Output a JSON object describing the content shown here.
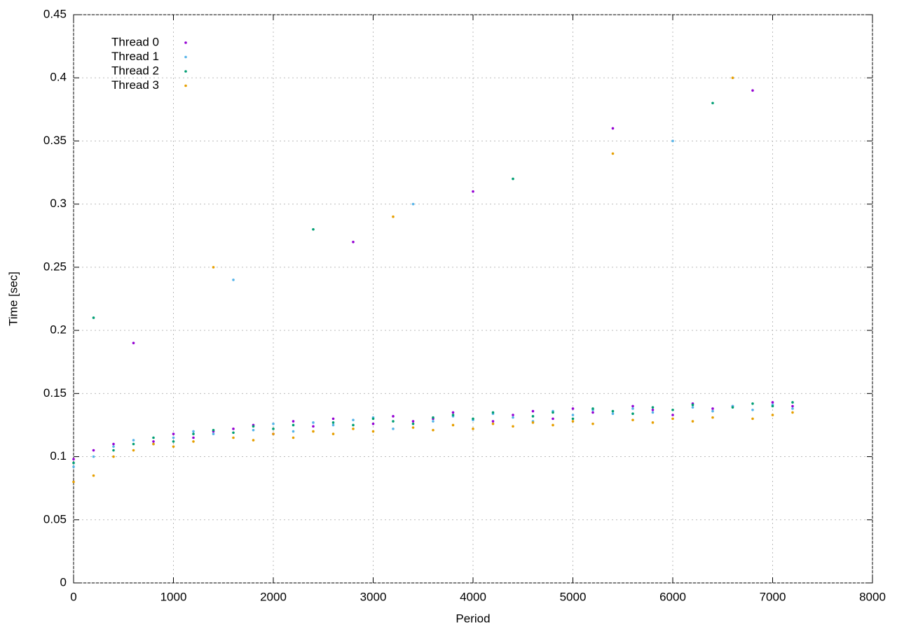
{
  "chart_data": {
    "type": "scatter",
    "x_label": "Period",
    "y_label": "Time [sec]",
    "xlim": [
      0,
      8000
    ],
    "ylim": [
      0,
      0.45
    ],
    "xticks": [
      0,
      1000,
      2000,
      3000,
      4000,
      5000,
      6000,
      7000,
      8000
    ],
    "yticks": [
      0,
      0.05,
      0.1,
      0.15,
      0.2,
      0.25,
      0.3,
      0.35,
      0.4,
      0.45
    ],
    "grid": true,
    "legend": "upper-left",
    "x": [
      0,
      200,
      400,
      600,
      800,
      1000,
      1200,
      1400,
      1600,
      1800,
      2000,
      2200,
      2400,
      2600,
      2800,
      3000,
      3200,
      3400,
      3600,
      3800,
      4000,
      4200,
      4400,
      4600,
      4800,
      5000,
      5200,
      5400,
      5600,
      5800,
      6000,
      6200,
      6400,
      6600,
      6800,
      7000,
      7200
    ],
    "series": [
      {
        "name": "Thread 0",
        "color": "#9400d3",
        "values": [
          0.098,
          0.105,
          0.11,
          0.19,
          0.112,
          0.118,
          0.115,
          0.12,
          0.122,
          0.125,
          0.118,
          0.128,
          0.124,
          0.13,
          0.27,
          0.126,
          0.132,
          0.128,
          0.13,
          0.135,
          0.31,
          0.128,
          0.133,
          0.136,
          0.13,
          0.138,
          0.135,
          0.36,
          0.14,
          0.137,
          0.133,
          0.142,
          0.138,
          0.14,
          0.39,
          0.143,
          0.14
        ]
      },
      {
        "name": "Thread 1",
        "color": "#56b4e9",
        "values": [
          0.092,
          0.1,
          0.108,
          0.113,
          0.11,
          0.115,
          0.12,
          0.118,
          0.24,
          0.121,
          0.126,
          0.12,
          0.127,
          0.125,
          0.129,
          0.131,
          0.122,
          0.3,
          0.128,
          0.132,
          0.129,
          0.134,
          0.131,
          0.128,
          0.136,
          0.133,
          0.137,
          0.134,
          0.138,
          0.135,
          0.35,
          0.139,
          0.136,
          0.14,
          0.137,
          0.141,
          0.138
        ]
      },
      {
        "name": "Thread 2",
        "color": "#009e73",
        "values": [
          0.095,
          0.21,
          0.105,
          0.11,
          0.115,
          0.112,
          0.118,
          0.121,
          0.119,
          0.124,
          0.122,
          0.125,
          0.28,
          0.127,
          0.125,
          0.13,
          0.128,
          0.126,
          0.131,
          0.133,
          0.13,
          0.135,
          0.32,
          0.132,
          0.135,
          0.13,
          0.138,
          0.136,
          0.134,
          0.139,
          0.137,
          0.141,
          0.38,
          0.139,
          0.142,
          0.14,
          0.143
        ]
      },
      {
        "name": "Thread 3",
        "color": "#e69f00",
        "values": [
          0.08,
          0.085,
          0.1,
          0.105,
          0.11,
          0.108,
          0.112,
          0.25,
          0.115,
          0.113,
          0.118,
          0.115,
          0.12,
          0.118,
          0.122,
          0.12,
          0.29,
          0.123,
          0.121,
          0.125,
          0.122,
          0.126,
          0.124,
          0.127,
          0.125,
          0.128,
          0.126,
          0.34,
          0.129,
          0.127,
          0.13,
          0.128,
          0.131,
          0.4,
          0.13,
          0.133,
          0.135
        ]
      }
    ]
  }
}
